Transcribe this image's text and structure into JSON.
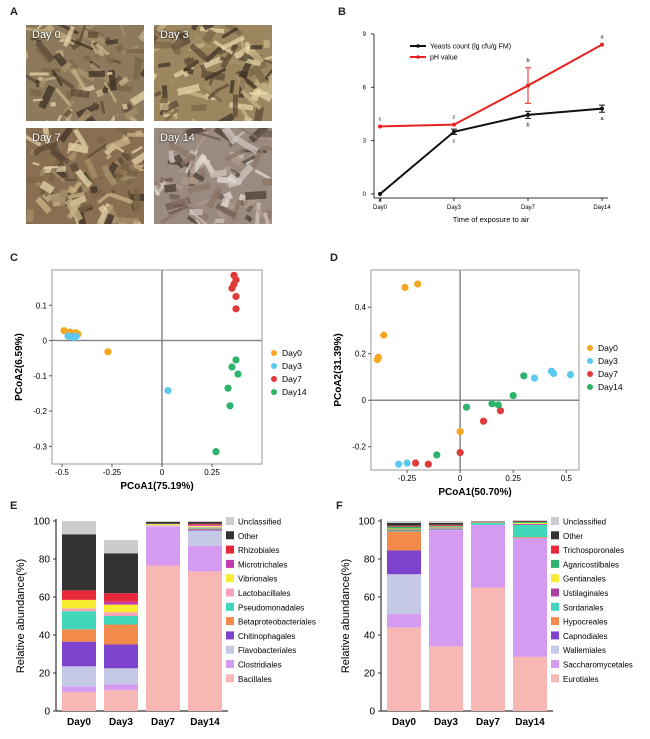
{
  "panels": {
    "A": {
      "letter": "A",
      "photos": [
        {
          "label": "Day 0",
          "tone": "#8d7a5c"
        },
        {
          "label": "Day 3",
          "tone": "#9b8660"
        },
        {
          "label": "Day 7",
          "tone": "#8a6e52"
        },
        {
          "label": "Day 14",
          "tone": "#9a8a80"
        }
      ]
    },
    "B": {
      "letter": "B"
    },
    "C": {
      "letter": "C"
    },
    "D": {
      "letter": "D"
    },
    "E": {
      "letter": "E"
    },
    "F": {
      "letter": "F"
    }
  },
  "chart_data": [
    {
      "id": "B",
      "type": "line",
      "xlabel": "Time of exposure to air",
      "ylabel": "",
      "categories": [
        "Day0",
        "Day3",
        "Day7",
        "Day14"
      ],
      "ylim": [
        0,
        9
      ],
      "yticks": [
        0,
        3,
        6,
        9
      ],
      "series": [
        {
          "name": "Yeasts count (lg cfu/g FM)",
          "color": "#111111",
          "values": [
            0,
            3.5,
            4.45,
            4.8
          ],
          "err": [
            0,
            0.15,
            0.2,
            0.2
          ],
          "letters": [
            "d",
            "c",
            "b",
            "a"
          ]
        },
        {
          "name": "pH value",
          "color": "#e8231f",
          "values": [
            3.8,
            3.9,
            6.1,
            8.4
          ],
          "err": [
            0,
            0,
            1.0,
            0
          ],
          "letters": [
            "c",
            "c",
            "b",
            "a"
          ]
        }
      ]
    },
    {
      "id": "C",
      "type": "scatter",
      "xlabel": "PCoA1(75.19%)",
      "ylabel": "PCoA2(6.59%)",
      "xlim": [
        -0.55,
        0.5
      ],
      "ylim": [
        -0.35,
        0.2
      ],
      "xticks": [
        -0.5,
        -0.25,
        0,
        0.25
      ],
      "yticks": [
        -0.3,
        -0.2,
        -0.1,
        0,
        0.1
      ],
      "ytick_labels": [
        "-0.3",
        "-0.2",
        "-0.1",
        "0",
        "0.1"
      ],
      "xtick_labels": [
        "-0.5",
        "-0.25",
        "0",
        "0.25"
      ],
      "legend": [
        {
          "name": "Day0",
          "color": "#f5a623"
        },
        {
          "name": "Day3",
          "color": "#5bc8ef"
        },
        {
          "name": "Day7",
          "color": "#e03a3a"
        },
        {
          "name": "Day14",
          "color": "#2db36b"
        }
      ],
      "groups": [
        {
          "name": "Day0",
          "points": [
            [
              -0.49,
              0.028
            ],
            [
              -0.46,
              0.024
            ],
            [
              -0.44,
              0.02
            ],
            [
              -0.43,
              0.022
            ],
            [
              -0.42,
              0.018
            ],
            [
              -0.27,
              -0.032
            ]
          ]
        },
        {
          "name": "Day3",
          "points": [
            [
              -0.47,
              0.013
            ],
            [
              -0.45,
              0.011
            ],
            [
              -0.44,
              0.009
            ],
            [
              -0.43,
              0.012
            ],
            [
              0.03,
              -0.142
            ]
          ]
        },
        {
          "name": "Day7",
          "points": [
            [
              0.36,
              0.185
            ],
            [
              0.37,
              0.172
            ],
            [
              0.36,
              0.16
            ],
            [
              0.35,
              0.148
            ],
            [
              0.37,
              0.125
            ],
            [
              0.37,
              0.09
            ]
          ]
        },
        {
          "name": "Day14",
          "points": [
            [
              0.37,
              -0.055
            ],
            [
              0.35,
              -0.075
            ],
            [
              0.38,
              -0.095
            ],
            [
              0.33,
              -0.135
            ],
            [
              0.34,
              -0.185
            ],
            [
              0.27,
              -0.315
            ]
          ]
        }
      ]
    },
    {
      "id": "D",
      "type": "scatter",
      "xlabel": "PCoA1(50.70%)",
      "ylabel": "PCoA2(31.39%)",
      "xlim": [
        -0.42,
        0.56
      ],
      "ylim": [
        -0.3,
        0.56
      ],
      "xticks": [
        -0.25,
        0,
        0.25,
        0.5
      ],
      "yticks": [
        -0.2,
        0,
        0.2,
        0.4
      ],
      "xtick_labels": [
        "-0.25",
        "0",
        "0.25",
        "0.5"
      ],
      "ytick_labels": [
        "-0.2",
        "0",
        "0.2",
        "0.4"
      ],
      "legend": [
        {
          "name": "Day0",
          "color": "#f5a623"
        },
        {
          "name": "Day3",
          "color": "#5bc8ef"
        },
        {
          "name": "Day7",
          "color": "#e03a3a"
        },
        {
          "name": "Day14",
          "color": "#2db36b"
        }
      ],
      "groups": [
        {
          "name": "Day0",
          "points": [
            [
              -0.2,
              0.5
            ],
            [
              -0.26,
              0.485
            ],
            [
              -0.36,
              0.28
            ],
            [
              -0.385,
              0.185
            ],
            [
              -0.39,
              0.175
            ],
            [
              0.0,
              -0.135
            ]
          ]
        },
        {
          "name": "Day3",
          "points": [
            [
              -0.29,
              -0.275
            ],
            [
              -0.25,
              -0.27
            ],
            [
              0.35,
              0.095
            ],
            [
              0.43,
              0.125
            ],
            [
              0.44,
              0.115
            ],
            [
              0.52,
              0.11
            ]
          ]
        },
        {
          "name": "Day7",
          "points": [
            [
              -0.21,
              -0.27
            ],
            [
              -0.15,
              -0.275
            ],
            [
              0.0,
              -0.225
            ],
            [
              0.11,
              -0.09
            ],
            [
              0.19,
              -0.045
            ]
          ]
        },
        {
          "name": "Day14",
          "points": [
            [
              -0.11,
              -0.235
            ],
            [
              0.03,
              -0.03
            ],
            [
              0.15,
              -0.015
            ],
            [
              0.18,
              -0.02
            ],
            [
              0.25,
              0.02
            ],
            [
              0.3,
              0.105
            ]
          ]
        }
      ]
    },
    {
      "id": "E",
      "type": "bar",
      "stacked": true,
      "ylabel": "Relative abundance(%)",
      "ylim": [
        0,
        100
      ],
      "yticks": [
        0,
        20,
        40,
        60,
        80,
        100
      ],
      "categories": [
        "Day0",
        "Day3",
        "Day7",
        "Day14"
      ],
      "legend_order": [
        "Unclassified",
        "Other",
        "Rhizobiales",
        "Microtrichales",
        "Vibrionales",
        "Lactobacillales",
        "Pseudomonadales",
        "Betaproteobacteriales",
        "Chitinophagales",
        "Flavobacteriales",
        "Clostridiales",
        "Bacillales"
      ],
      "series": [
        {
          "name": "Bacillales",
          "color": "#f7b7b5",
          "values": [
            10,
            11,
            76.5,
            73.5
          ]
        },
        {
          "name": "Clostridiales",
          "color": "#d59bf0",
          "values": [
            3,
            3,
            20.5,
            13.5
          ]
        },
        {
          "name": "Flavobacteriales",
          "color": "#c5c9e6",
          "values": [
            10.5,
            8.5,
            0.5,
            8
          ]
        },
        {
          "name": "Chitinophagales",
          "color": "#7d43cc",
          "values": [
            13,
            12.5,
            0,
            0.5
          ]
        },
        {
          "name": "Betaproteobacteriales",
          "color": "#f28a4b",
          "values": [
            6.5,
            10.5,
            0,
            0.5
          ]
        },
        {
          "name": "Pseudomonadales",
          "color": "#3fd6b9",
          "values": [
            9.5,
            4.5,
            0,
            0.5
          ]
        },
        {
          "name": "Lactobacillales",
          "color": "#f6a5b8",
          "values": [
            1.5,
            2,
            0.5,
            0.5
          ]
        },
        {
          "name": "Vibrionales",
          "color": "#f7ec2f",
          "values": [
            4.5,
            4,
            0.5,
            0.5
          ]
        },
        {
          "name": "Microtrichales",
          "color": "#c23bb0",
          "values": [
            0,
            1.5,
            0,
            0.5
          ]
        },
        {
          "name": "Rhizobiales",
          "color": "#e8283a",
          "values": [
            5,
            4.5,
            0,
            0.5
          ]
        },
        {
          "name": "Other",
          "color": "#333333",
          "values": [
            29.5,
            21,
            1,
            1
          ]
        },
        {
          "name": "Unclassified",
          "color": "#cccccc",
          "values": [
            7,
            7,
            0.5,
            0.5
          ]
        }
      ]
    },
    {
      "id": "F",
      "type": "bar",
      "stacked": true,
      "ylabel": "Relative abundance(%)",
      "ylim": [
        0,
        100
      ],
      "yticks": [
        0,
        20,
        40,
        60,
        80,
        100
      ],
      "categories": [
        "Day0",
        "Day3",
        "Day7",
        "Day14"
      ],
      "legend_order": [
        "Unclassified",
        "Other",
        "Trichosporonales",
        "Agaricostilbales",
        "Gentianales",
        "Ustilaginales",
        "Sordariales",
        "Hypocreales",
        "Capnodiales",
        "Wallemiales",
        "Saccharomycetales",
        "Eurotiales"
      ],
      "series": [
        {
          "name": "Eurotiales",
          "color": "#f7b7b5",
          "values": [
            44,
            34,
            65,
            28.5
          ]
        },
        {
          "name": "Saccharomycetales",
          "color": "#d59bf0",
          "values": [
            7,
            61,
            33,
            62.5
          ]
        },
        {
          "name": "Wallemiales",
          "color": "#c5c9e6",
          "values": [
            21,
            0.5,
            0,
            0
          ]
        },
        {
          "name": "Capnodiales",
          "color": "#7d43cc",
          "values": [
            12.5,
            0.3,
            0,
            0
          ]
        },
        {
          "name": "Hypocreales",
          "color": "#f28a4b",
          "values": [
            10,
            0.3,
            0,
            0.5
          ]
        },
        {
          "name": "Sordariales",
          "color": "#3fd6b9",
          "values": [
            0.5,
            0.3,
            1,
            6.5
          ]
        },
        {
          "name": "Ustilaginales",
          "color": "#b040a0",
          "values": [
            0.5,
            0.3,
            0.2,
            0.5
          ]
        },
        {
          "name": "Gentianales",
          "color": "#f7ec2f",
          "values": [
            0.5,
            0.3,
            0.2,
            0.5
          ]
        },
        {
          "name": "Agaricostilbales",
          "color": "#2db36b",
          "values": [
            1,
            0.5,
            0.2,
            0.5
          ]
        },
        {
          "name": "Trichosporonales",
          "color": "#e8283a",
          "values": [
            0.5,
            0.5,
            0.1,
            0.2
          ]
        },
        {
          "name": "Other",
          "color": "#333333",
          "values": [
            1.5,
            1,
            0.1,
            0.3
          ]
        },
        {
          "name": "Unclassified",
          "color": "#cccccc",
          "values": [
            1,
            1,
            0.2,
            0.5
          ]
        }
      ]
    }
  ]
}
